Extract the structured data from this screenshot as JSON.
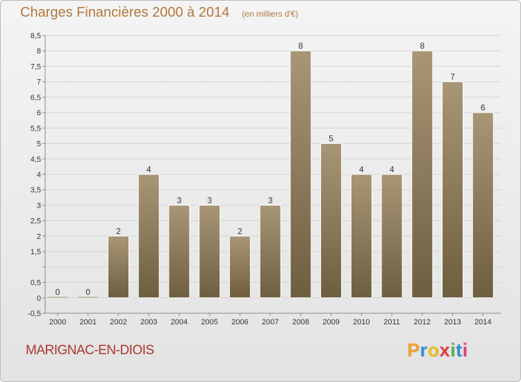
{
  "header": {
    "title": "Charges Financières 2000 à 2014",
    "unit_note": "(en milliers d'€)"
  },
  "footer": {
    "place_name": "MARIGNAC-EN-DIOIS",
    "brand": {
      "letters": [
        "P",
        "r",
        "o",
        "x",
        "i",
        "t",
        "i"
      ],
      "colors": [
        "#f0a030",
        "#2f8fd8",
        "#e8c020",
        "#e04040",
        "#50b848",
        "#2f8fd8",
        "#e04080"
      ]
    }
  },
  "colors": {
    "title": "#b1783c",
    "place": "#a8372f",
    "bar_top": "#a89676",
    "bar_bottom": "#6e5e40",
    "grid": "#d4d4d4",
    "axis": "#888888",
    "text": "#333333"
  },
  "chart_data": {
    "type": "bar",
    "categories": [
      "2000",
      "2001",
      "2002",
      "2003",
      "2004",
      "2005",
      "2006",
      "2007",
      "2008",
      "2009",
      "2010",
      "2011",
      "2012",
      "2013",
      "2014"
    ],
    "values": [
      0,
      0,
      2,
      4,
      3,
      3,
      2,
      3,
      8,
      5,
      4,
      4,
      8,
      7,
      6
    ],
    "data_labels": [
      "0",
      "0",
      "2",
      "4",
      "3",
      "3",
      "2",
      "3",
      "8",
      "5",
      "4",
      "4",
      "8",
      "7",
      "6"
    ],
    "ylim": [
      -0.5,
      8.5
    ],
    "yticks": [
      -0.5,
      0,
      0.5,
      1,
      1.5,
      2,
      2.5,
      3,
      3.5,
      4,
      4.5,
      5,
      5.5,
      6,
      6.5,
      7,
      7.5,
      8,
      8.5
    ],
    "ytick_labels": [
      "-0,5",
      "0",
      "0,5",
      "",
      "1,5",
      "2",
      "2,5",
      "3",
      "3,5",
      "4",
      "4,5",
      "5",
      "5,5",
      "6",
      "6,5",
      "7",
      "7,5",
      "8",
      "8,5"
    ],
    "grid": true,
    "legend": "none"
  }
}
